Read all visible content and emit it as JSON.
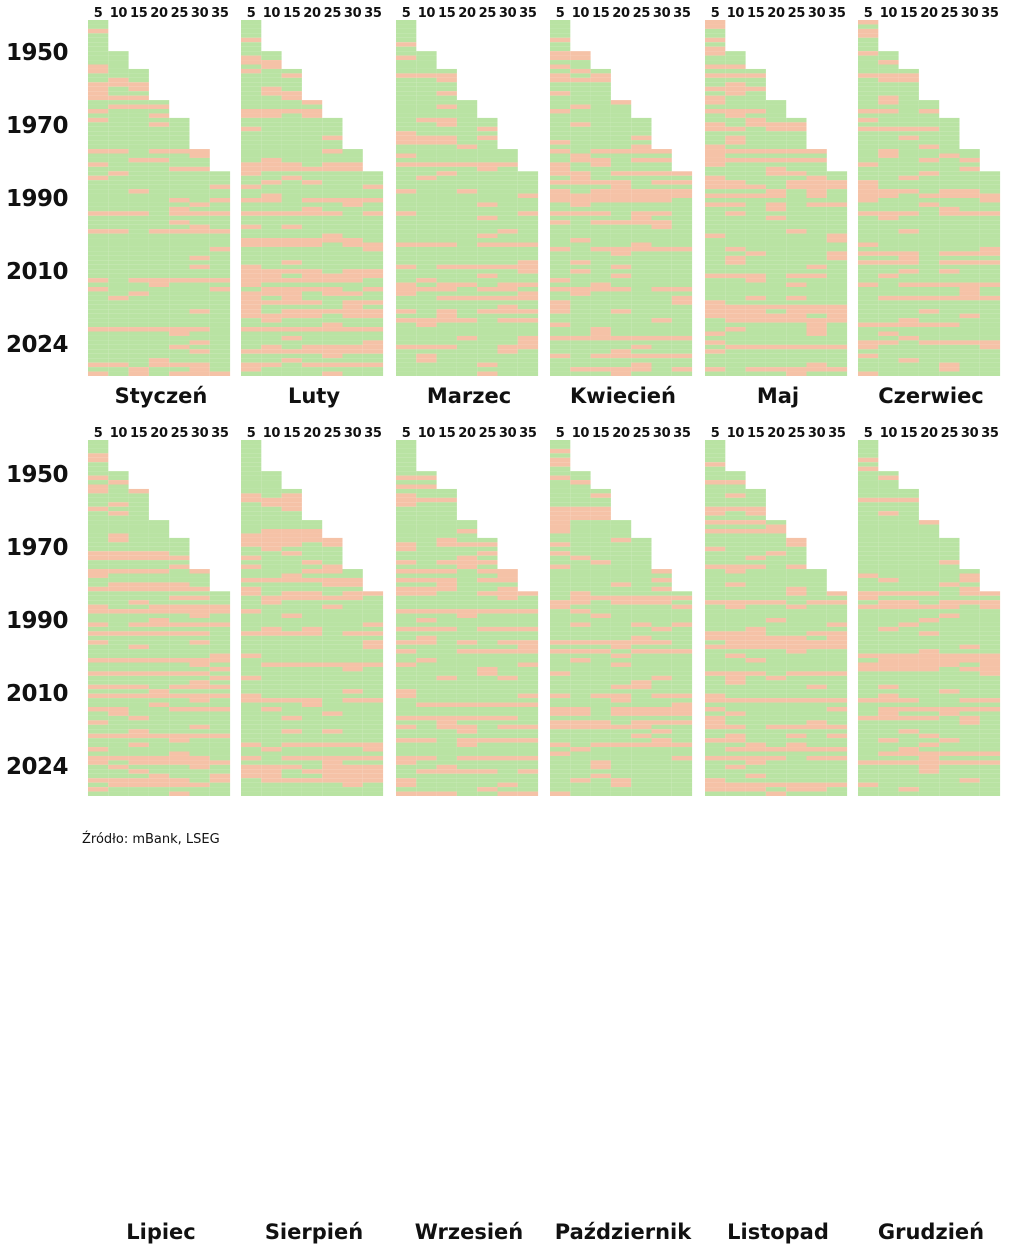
{
  "chart_data": {
    "type": "heatmap",
    "column_labels": [
      "5",
      "10",
      "15",
      "20",
      "25",
      "30",
      "35"
    ],
    "year_ticks": [
      "1950",
      "1970",
      "1990",
      "2010",
      "2024"
    ],
    "panels": [
      {
        "month": "Styczeń"
      },
      {
        "month": "Luty"
      },
      {
        "month": "Marzec"
      },
      {
        "month": "Kwiecień"
      },
      {
        "month": "Maj"
      },
      {
        "month": "Czerwiec"
      },
      {
        "month": "Lipiec"
      },
      {
        "month": "Sierpień"
      },
      {
        "month": "Wrzesień"
      },
      {
        "month": "Październik"
      },
      {
        "month": "Listopad"
      },
      {
        "month": "Grudzień"
      }
    ],
    "colors": {
      "positive": "#b9e3a3",
      "negative": "#f5c2a7"
    },
    "grid": false,
    "legend": "none"
  },
  "source": "Źródło: mBank, LSEG"
}
